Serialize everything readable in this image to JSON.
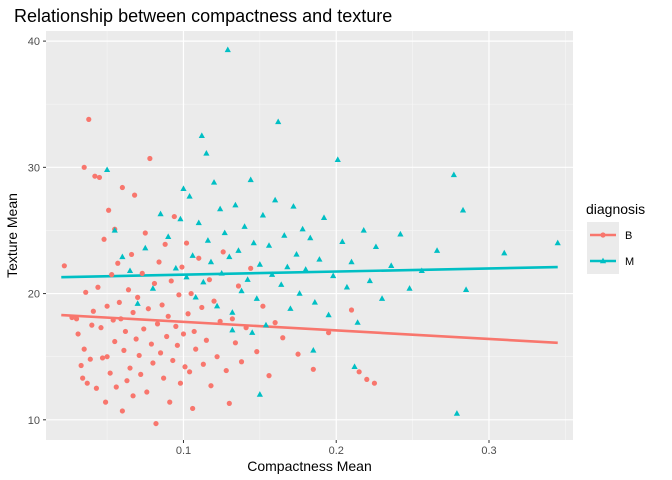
{
  "chart_data": {
    "type": "scatter",
    "title": "Relationship between compactness and texture",
    "xlabel": "Compactness Mean",
    "ylabel": "Texture Mean",
    "xlim": [
      0.01,
      0.355
    ],
    "ylim": [
      8.4,
      40.8
    ],
    "x_ticks": [
      0.1,
      0.2,
      0.3
    ],
    "x_tick_labels": [
      "0.1",
      "0.2",
      "0.3"
    ],
    "y_ticks": [
      10,
      20,
      30,
      40
    ],
    "y_tick_labels": [
      "10",
      "20",
      "30",
      "40"
    ],
    "grid": true,
    "legend": {
      "title": "diagnosis",
      "position": "right"
    },
    "series": [
      {
        "name": "B",
        "color": "#F8766D",
        "marker": "circle",
        "trend": {
          "x": [
            0.02,
            0.345
          ],
          "y": [
            18.3,
            16.1
          ]
        },
        "points": [
          [
            0.022,
            22.2
          ],
          [
            0.027,
            18.1
          ],
          [
            0.03,
            18.0
          ],
          [
            0.031,
            16.8
          ],
          [
            0.033,
            14.3
          ],
          [
            0.034,
            13.3
          ],
          [
            0.035,
            15.6
          ],
          [
            0.035,
            30.0
          ],
          [
            0.036,
            20.1
          ],
          [
            0.037,
            12.9
          ],
          [
            0.038,
            33.8
          ],
          [
            0.039,
            14.8
          ],
          [
            0.04,
            17.5
          ],
          [
            0.041,
            18.6
          ],
          [
            0.042,
            29.3
          ],
          [
            0.043,
            12.5
          ],
          [
            0.044,
            20.5
          ],
          [
            0.045,
            29.2
          ],
          [
            0.046,
            17.3
          ],
          [
            0.047,
            14.9
          ],
          [
            0.048,
            24.3
          ],
          [
            0.049,
            11.4
          ],
          [
            0.05,
            19.0
          ],
          [
            0.05,
            15.0
          ],
          [
            0.051,
            26.6
          ],
          [
            0.052,
            13.7
          ],
          [
            0.053,
            21.5
          ],
          [
            0.054,
            17.9
          ],
          [
            0.055,
            16.2
          ],
          [
            0.055,
            25.1
          ],
          [
            0.056,
            12.6
          ],
          [
            0.057,
            22.4
          ],
          [
            0.058,
            19.3
          ],
          [
            0.059,
            18.0
          ],
          [
            0.06,
            10.7
          ],
          [
            0.06,
            28.4
          ],
          [
            0.061,
            15.5
          ],
          [
            0.062,
            17.0
          ],
          [
            0.063,
            13.1
          ],
          [
            0.064,
            20.3
          ],
          [
            0.065,
            14.1
          ],
          [
            0.066,
            23.1
          ],
          [
            0.067,
            18.5
          ],
          [
            0.067,
            11.9
          ],
          [
            0.068,
            27.8
          ],
          [
            0.069,
            16.4
          ],
          [
            0.07,
            19.7
          ],
          [
            0.071,
            15.1
          ],
          [
            0.072,
            13.6
          ],
          [
            0.073,
            21.6
          ],
          [
            0.074,
            17.2
          ],
          [
            0.075,
            24.8
          ],
          [
            0.076,
            12.2
          ],
          [
            0.077,
            18.8
          ],
          [
            0.078,
            30.7
          ],
          [
            0.079,
            16.0
          ],
          [
            0.08,
            14.5
          ],
          [
            0.081,
            20.8
          ],
          [
            0.082,
            9.7
          ],
          [
            0.083,
            17.6
          ],
          [
            0.084,
            22.5
          ],
          [
            0.085,
            15.3
          ],
          [
            0.086,
            19.1
          ],
          [
            0.087,
            13.3
          ],
          [
            0.088,
            23.9
          ],
          [
            0.089,
            16.6
          ],
          [
            0.09,
            18.2
          ],
          [
            0.091,
            11.4
          ],
          [
            0.092,
            21.0
          ],
          [
            0.093,
            14.7
          ],
          [
            0.094,
            26.1
          ],
          [
            0.095,
            17.4
          ],
          [
            0.096,
            15.9
          ],
          [
            0.097,
            19.9
          ],
          [
            0.098,
            12.9
          ],
          [
            0.099,
            22.1
          ],
          [
            0.1,
            16.8
          ],
          [
            0.101,
            14.2
          ],
          [
            0.102,
            24.0
          ],
          [
            0.103,
            18.4
          ],
          [
            0.104,
            13.8
          ],
          [
            0.105,
            20.0
          ],
          [
            0.106,
            10.9
          ],
          [
            0.107,
            17.0
          ],
          [
            0.108,
            15.6
          ],
          [
            0.11,
            22.8
          ],
          [
            0.112,
            18.9
          ],
          [
            0.113,
            14.4
          ],
          [
            0.115,
            16.3
          ],
          [
            0.117,
            21.1
          ],
          [
            0.118,
            12.7
          ],
          [
            0.12,
            19.4
          ],
          [
            0.122,
            15.0
          ],
          [
            0.124,
            17.8
          ],
          [
            0.126,
            23.3
          ],
          [
            0.128,
            13.9
          ],
          [
            0.13,
            11.3
          ],
          [
            0.132,
            18.0
          ],
          [
            0.134,
            16.1
          ],
          [
            0.136,
            20.6
          ],
          [
            0.138,
            14.6
          ],
          [
            0.141,
            17.3
          ],
          [
            0.144,
            22.0
          ],
          [
            0.148,
            15.4
          ],
          [
            0.152,
            19.0
          ],
          [
            0.156,
            13.5
          ],
          [
            0.16,
            17.7
          ],
          [
            0.165,
            16.5
          ],
          [
            0.175,
            15.2
          ],
          [
            0.185,
            14.0
          ],
          [
            0.195,
            16.9
          ],
          [
            0.21,
            18.7
          ],
          [
            0.215,
            13.8
          ],
          [
            0.22,
            13.2
          ],
          [
            0.225,
            12.9
          ]
        ]
      },
      {
        "name": "M",
        "color": "#00BFC4",
        "marker": "triangle",
        "trend": {
          "x": [
            0.02,
            0.345
          ],
          "y": [
            21.3,
            22.1
          ]
        },
        "points": [
          [
            0.05,
            29.8
          ],
          [
            0.055,
            25.0
          ],
          [
            0.06,
            22.9
          ],
          [
            0.065,
            21.8
          ],
          [
            0.07,
            19.2
          ],
          [
            0.075,
            23.6
          ],
          [
            0.08,
            20.4
          ],
          [
            0.085,
            26.3
          ],
          [
            0.09,
            24.5
          ],
          [
            0.095,
            22.0
          ],
          [
            0.098,
            25.9
          ],
          [
            0.1,
            28.3
          ],
          [
            0.102,
            21.3
          ],
          [
            0.104,
            27.7
          ],
          [
            0.106,
            23.0
          ],
          [
            0.108,
            19.7
          ],
          [
            0.11,
            25.6
          ],
          [
            0.112,
            32.5
          ],
          [
            0.113,
            20.9
          ],
          [
            0.115,
            31.1
          ],
          [
            0.116,
            24.2
          ],
          [
            0.118,
            22.5
          ],
          [
            0.12,
            28.8
          ],
          [
            0.122,
            19.0
          ],
          [
            0.124,
            26.7
          ],
          [
            0.125,
            21.6
          ],
          [
            0.127,
            24.8
          ],
          [
            0.129,
            39.3
          ],
          [
            0.13,
            22.9
          ],
          [
            0.132,
            18.5
          ],
          [
            0.134,
            27.0
          ],
          [
            0.136,
            23.4
          ],
          [
            0.138,
            20.2
          ],
          [
            0.14,
            25.3
          ],
          [
            0.142,
            21.1
          ],
          [
            0.144,
            29.0
          ],
          [
            0.146,
            24.0
          ],
          [
            0.148,
            19.6
          ],
          [
            0.15,
            22.3
          ],
          [
            0.152,
            26.2
          ],
          [
            0.154,
            17.5
          ],
          [
            0.156,
            23.8
          ],
          [
            0.158,
            21.5
          ],
          [
            0.16,
            27.4
          ],
          [
            0.162,
            33.6
          ],
          [
            0.164,
            20.7
          ],
          [
            0.166,
            24.6
          ],
          [
            0.168,
            22.1
          ],
          [
            0.17,
            18.8
          ],
          [
            0.172,
            26.9
          ],
          [
            0.174,
            23.1
          ],
          [
            0.176,
            20.0
          ],
          [
            0.178,
            25.1
          ],
          [
            0.18,
            21.9
          ],
          [
            0.183,
            24.4
          ],
          [
            0.186,
            19.3
          ],
          [
            0.189,
            22.7
          ],
          [
            0.192,
            26.0
          ],
          [
            0.195,
            18.3
          ],
          [
            0.198,
            21.4
          ],
          [
            0.201,
            30.6
          ],
          [
            0.204,
            24.1
          ],
          [
            0.207,
            20.5
          ],
          [
            0.21,
            22.5
          ],
          [
            0.214,
            17.7
          ],
          [
            0.218,
            25.0
          ],
          [
            0.222,
            21.0
          ],
          [
            0.226,
            23.7
          ],
          [
            0.23,
            19.6
          ],
          [
            0.236,
            22.2
          ],
          [
            0.242,
            24.7
          ],
          [
            0.248,
            20.4
          ],
          [
            0.256,
            21.8
          ],
          [
            0.266,
            23.4
          ],
          [
            0.277,
            29.4
          ],
          [
            0.279,
            10.5
          ],
          [
            0.283,
            26.6
          ],
          [
            0.285,
            20.3
          ],
          [
            0.31,
            23.2
          ],
          [
            0.345,
            24.0
          ],
          [
            0.15,
            12.0
          ],
          [
            0.185,
            15.5
          ],
          [
            0.212,
            14.2
          ],
          [
            0.145,
            16.9
          ],
          [
            0.132,
            17.1
          ]
        ]
      }
    ]
  }
}
